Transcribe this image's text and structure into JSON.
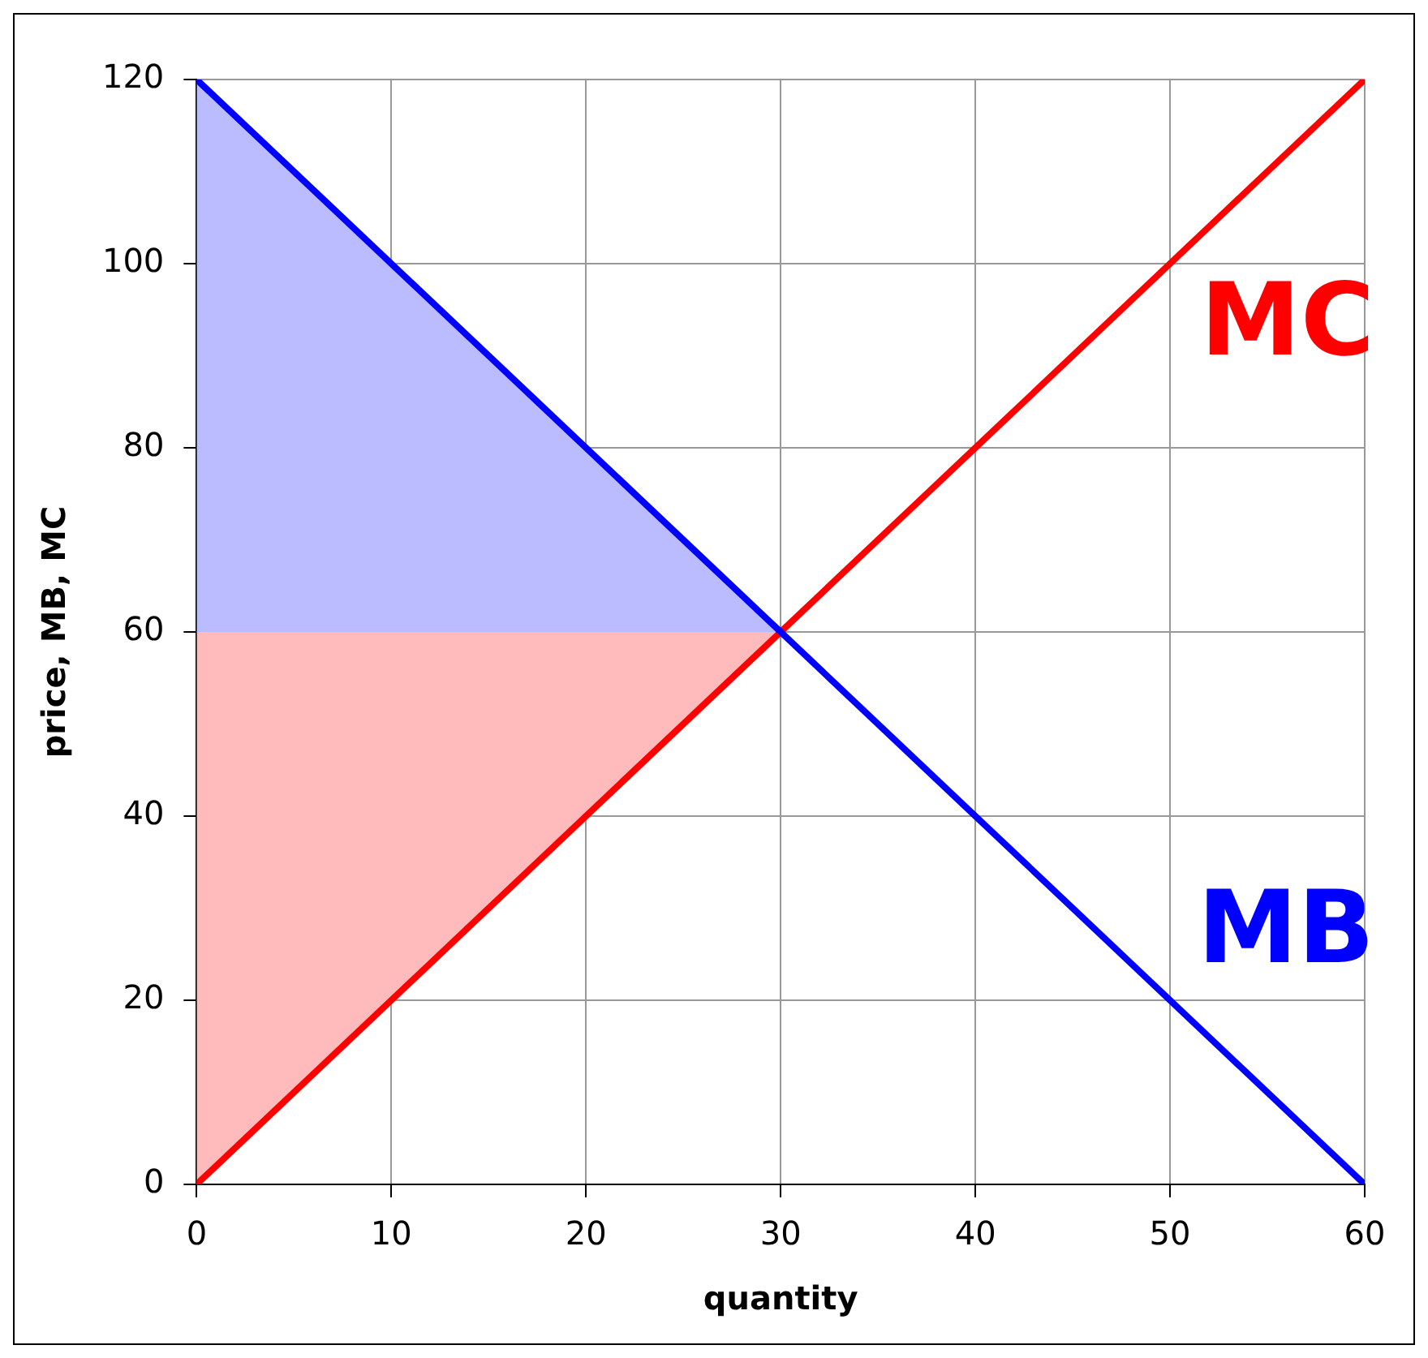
{
  "chart_data": {
    "type": "line",
    "xlabel": "quantity",
    "ylabel": "price, MB, MC",
    "xlim": [
      0,
      60
    ],
    "ylim": [
      0,
      120
    ],
    "xticks": [
      0,
      10,
      20,
      30,
      40,
      50,
      60
    ],
    "yticks": [
      0,
      20,
      40,
      60,
      80,
      100,
      120
    ],
    "grid": true,
    "legend": false,
    "marker": "none",
    "line_style": "solid",
    "series": [
      {
        "type": "area",
        "color": "#bbbbff",
        "x": [
          0,
          30,
          0
        ],
        "values": [
          120,
          60,
          60
        ]
      },
      {
        "type": "area",
        "color": "#ffbbbb",
        "x": [
          0,
          30,
          0
        ],
        "values": [
          0,
          60,
          60
        ]
      },
      {
        "type": "line",
        "name": "MB",
        "color": "#0000ff",
        "x": [
          0,
          60
        ],
        "values": [
          120,
          0
        ]
      },
      {
        "type": "line",
        "name": "MC",
        "color": "#ff0000",
        "x": [
          0,
          60
        ],
        "values": [
          0,
          120
        ]
      }
    ]
  }
}
